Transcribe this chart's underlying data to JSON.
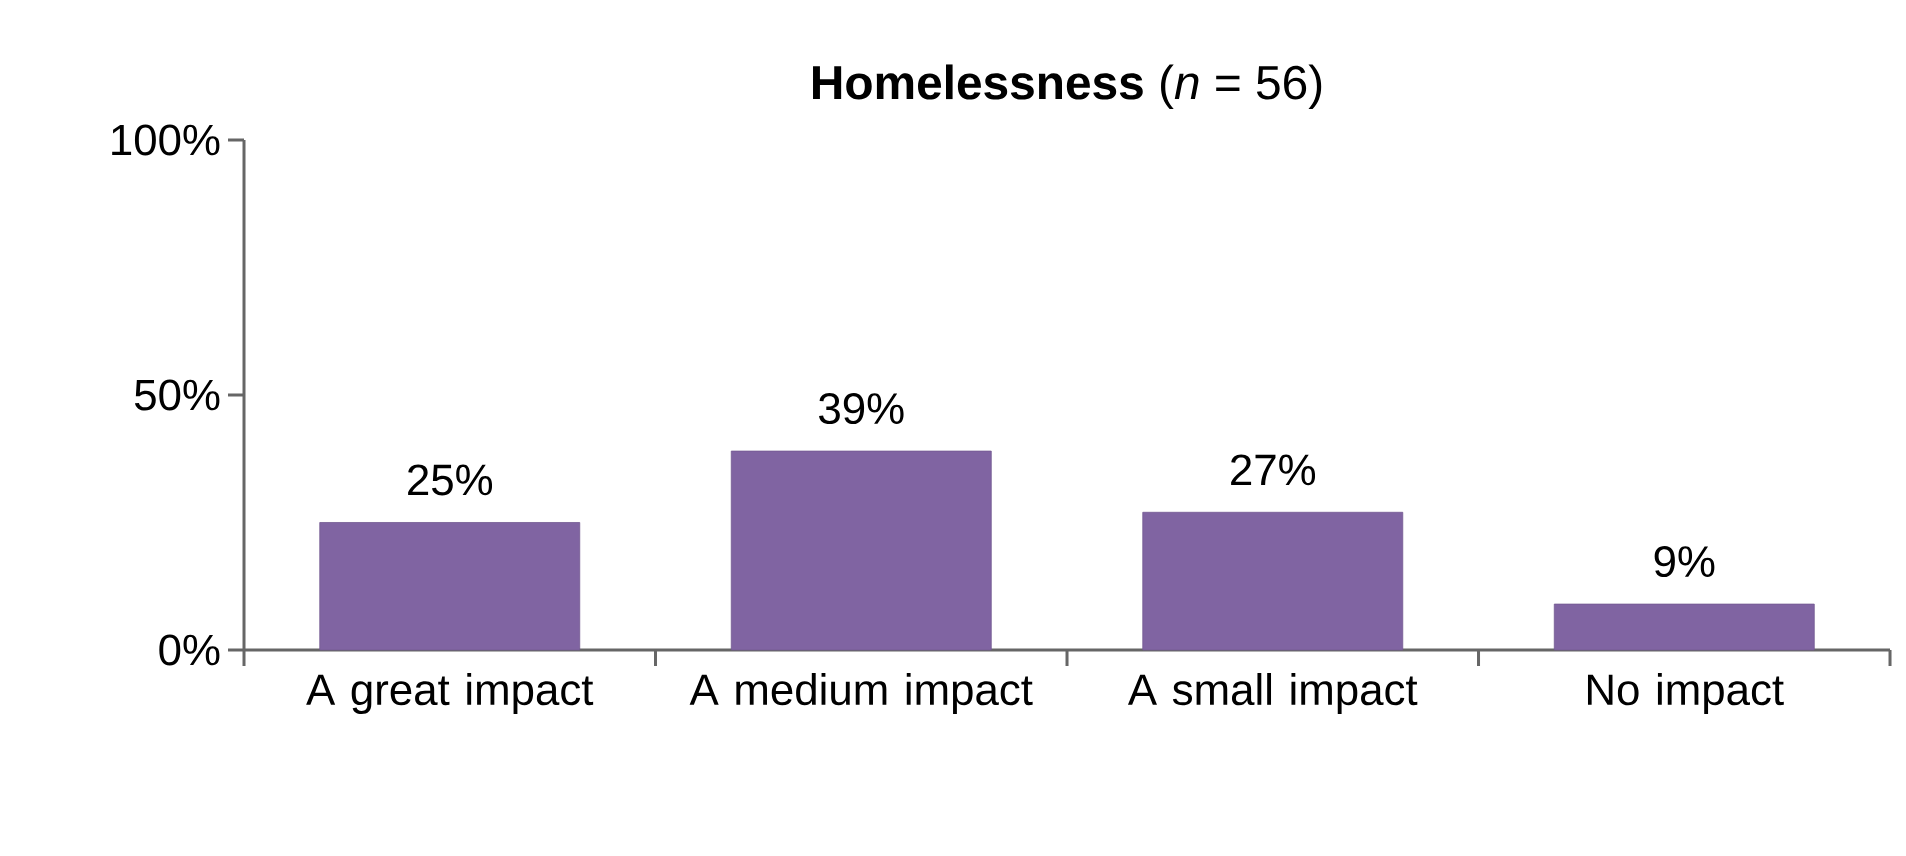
{
  "chart_data": {
    "type": "bar",
    "title": "**Homelessness** (*n* = 56)",
    "categories": [
      "A great impact",
      "A medium impact",
      "A small impact",
      "No impact"
    ],
    "values": [
      25,
      39,
      27,
      9
    ],
    "value_labels": [
      "25%",
      "39%",
      "27%",
      "9%"
    ],
    "color": "#8064a2",
    "ylim": [
      0,
      100
    ],
    "yticks": [
      {
        "value": 0,
        "label": "0%"
      },
      {
        "value": 50,
        "label": "50%"
      },
      {
        "value": 100,
        "label": "100%"
      }
    ]
  }
}
